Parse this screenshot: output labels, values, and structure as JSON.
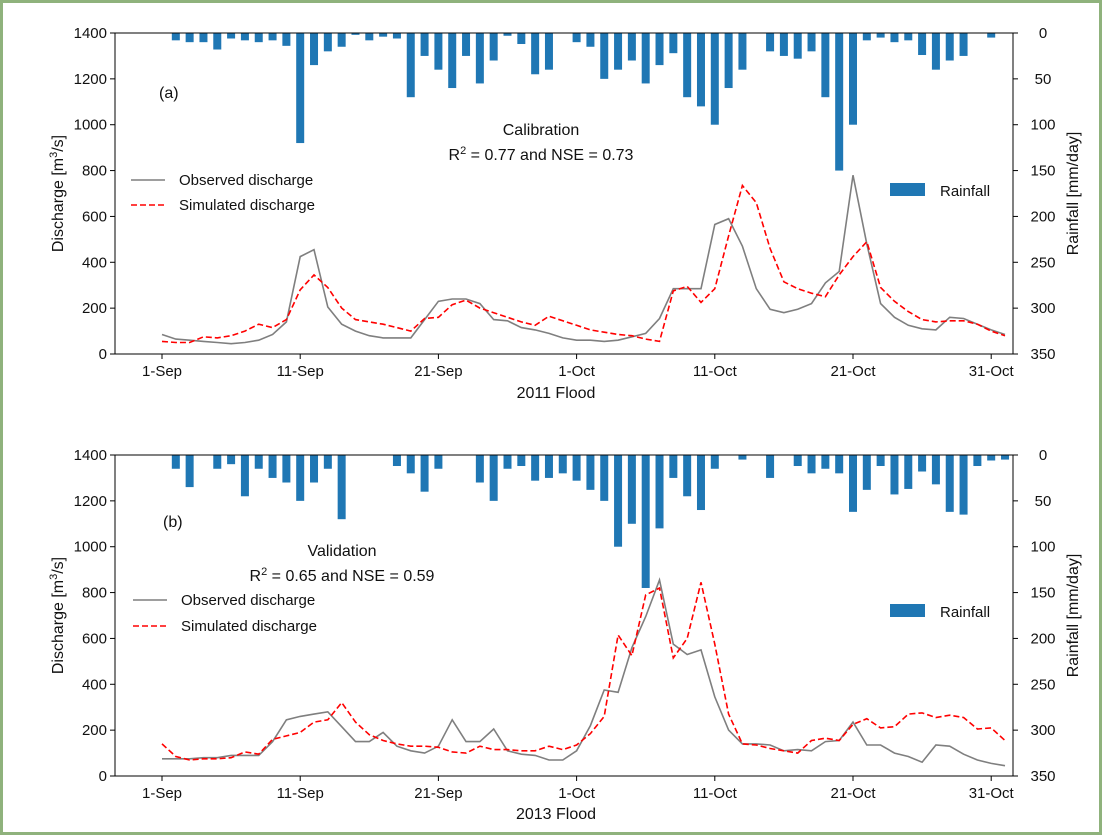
{
  "figure": {
    "frame_color": "#8fb27c"
  },
  "chart_data": [
    {
      "type": "line",
      "panel_label": "(a)",
      "title": "Calibration",
      "stats_line": {
        "pre": "R",
        "sup": "2",
        "post": " = 0.77 and NSE = 0.73"
      },
      "xlabel": "2011 Flood",
      "ylabel": {
        "pre": "Discharge [m",
        "sup": "3",
        "post": "/s]"
      },
      "y2label": "Rainfall [mm/day]",
      "ylim": [
        0,
        1400
      ],
      "y2lim": [
        0,
        350
      ],
      "y2_inverted": true,
      "yticks": [
        "0",
        "200",
        "400",
        "600",
        "800",
        "1000",
        "1200",
        "1400"
      ],
      "y2ticks": [
        "0",
        "50",
        "100",
        "150",
        "200",
        "250",
        "300",
        "350"
      ],
      "xticks": [
        {
          "day": 1,
          "label": "1-Sep"
        },
        {
          "day": 11,
          "label": "11-Sep"
        },
        {
          "day": 21,
          "label": "21-Sep"
        },
        {
          "day": 31,
          "label": "1-Oct"
        },
        {
          "day": 41,
          "label": "11-Oct"
        },
        {
          "day": 51,
          "label": "21-Oct"
        },
        {
          "day": 61,
          "label": "31-Oct"
        }
      ],
      "x_start": "1-Sep",
      "legend": {
        "observed": "Observed discharge",
        "simulated": "Simulated discharge",
        "rainfall": "Rainfall"
      },
      "colors": {
        "observed": "#7f7f7f",
        "simulated": "#ff0000",
        "rainfall": "#1f77b4"
      },
      "series": [
        {
          "name": "Observed discharge",
          "values": [
            85,
            65,
            60,
            55,
            50,
            45,
            50,
            60,
            85,
            140,
            425,
            455,
            205,
            130,
            100,
            80,
            70,
            70,
            70,
            150,
            230,
            240,
            240,
            220,
            150,
            145,
            115,
            105,
            90,
            70,
            60,
            60,
            55,
            60,
            75,
            90,
            155,
            285,
            285,
            285,
            565,
            590,
            470,
            285,
            195,
            180,
            195,
            220,
            310,
            360,
            780,
            480,
            220,
            160,
            125,
            110,
            105,
            160,
            155,
            130,
            105,
            85
          ]
        },
        {
          "name": "Simulated discharge",
          "values": [
            55,
            50,
            50,
            75,
            70,
            80,
            100,
            130,
            115,
            150,
            280,
            345,
            290,
            200,
            150,
            140,
            130,
            115,
            100,
            155,
            160,
            215,
            235,
            200,
            180,
            160,
            140,
            125,
            165,
            145,
            125,
            105,
            95,
            85,
            80,
            65,
            55,
            275,
            295,
            225,
            285,
            515,
            735,
            660,
            460,
            315,
            285,
            265,
            250,
            345,
            425,
            490,
            290,
            230,
            185,
            150,
            140,
            145,
            145,
            130,
            100,
            80
          ]
        },
        {
          "name": "Rainfall",
          "values": [
            0,
            8,
            10,
            10,
            18,
            6,
            8,
            10,
            8,
            14,
            120,
            35,
            20,
            15,
            2,
            8,
            4,
            6,
            70,
            25,
            40,
            60,
            25,
            55,
            30,
            3,
            12,
            45,
            40,
            0,
            10,
            15,
            50,
            40,
            30,
            55,
            35,
            22,
            70,
            80,
            100,
            60,
            40,
            0,
            20,
            25,
            28,
            20,
            70,
            150,
            100,
            8,
            5,
            10,
            8,
            24,
            40,
            30,
            25,
            0,
            5,
            0
          ]
        }
      ]
    },
    {
      "type": "line",
      "panel_label": "(b)",
      "title": "Validation",
      "stats_line": {
        "pre": "R",
        "sup": "2",
        "post": " = 0.65 and NSE = 0.59"
      },
      "xlabel": "2013 Flood",
      "ylabel": {
        "pre": "Discharge [m",
        "sup": "3",
        "post": "/s]"
      },
      "y2label": "Rainfall [mm/day]",
      "ylim": [
        0,
        1400
      ],
      "y2lim": [
        0,
        350
      ],
      "y2_inverted": true,
      "yticks": [
        "0",
        "200",
        "400",
        "600",
        "800",
        "1000",
        "1200",
        "1400"
      ],
      "y2ticks": [
        "0",
        "50",
        "100",
        "150",
        "200",
        "250",
        "300",
        "350"
      ],
      "xticks": [
        {
          "day": 1,
          "label": "1-Sep"
        },
        {
          "day": 11,
          "label": "11-Sep"
        },
        {
          "day": 21,
          "label": "21-Sep"
        },
        {
          "day": 31,
          "label": "1-Oct"
        },
        {
          "day": 41,
          "label": "11-Oct"
        },
        {
          "day": 51,
          "label": "21-Oct"
        },
        {
          "day": 61,
          "label": "31-Oct"
        }
      ],
      "x_start": "1-Sep",
      "legend": {
        "observed": "Observed discharge",
        "simulated": "Simulated discharge",
        "rainfall": "Rainfall"
      },
      "colors": {
        "observed": "#7f7f7f",
        "simulated": "#ff0000",
        "rainfall": "#1f77b4"
      },
      "series": [
        {
          "name": "Observed discharge",
          "values": [
            75,
            75,
            75,
            80,
            80,
            90,
            90,
            90,
            150,
            245,
            260,
            270,
            280,
            215,
            150,
            150,
            190,
            130,
            110,
            100,
            130,
            245,
            150,
            150,
            205,
            110,
            95,
            90,
            70,
            70,
            110,
            220,
            375,
            365,
            560,
            695,
            855,
            575,
            530,
            550,
            345,
            200,
            140,
            140,
            135,
            110,
            115,
            110,
            150,
            155,
            235,
            135,
            135,
            100,
            85,
            60,
            135,
            130,
            95,
            70,
            55,
            45
          ]
        },
        {
          "name": "Simulated discharge",
          "values": [
            140,
            85,
            70,
            75,
            75,
            80,
            105,
            95,
            160,
            175,
            190,
            235,
            245,
            320,
            235,
            180,
            155,
            140,
            130,
            130,
            125,
            105,
            100,
            130,
            115,
            115,
            110,
            110,
            130,
            115,
            135,
            185,
            260,
            615,
            525,
            790,
            820,
            515,
            600,
            845,
            575,
            270,
            140,
            135,
            120,
            110,
            100,
            155,
            165,
            155,
            225,
            250,
            210,
            215,
            270,
            275,
            255,
            265,
            255,
            205,
            210,
            155
          ]
        },
        {
          "name": "Rainfall",
          "values": [
            0,
            15,
            35,
            0,
            15,
            10,
            45,
            15,
            25,
            30,
            50,
            30,
            15,
            70,
            0,
            0,
            0,
            12,
            20,
            40,
            15,
            0,
            0,
            30,
            50,
            15,
            12,
            28,
            25,
            20,
            28,
            38,
            50,
            100,
            75,
            145,
            80,
            25,
            45,
            60,
            15,
            0,
            5,
            0,
            25,
            0,
            12,
            20,
            15,
            20,
            62,
            38,
            12,
            43,
            37,
            18,
            32,
            62,
            65,
            12,
            6,
            5
          ]
        }
      ]
    }
  ]
}
